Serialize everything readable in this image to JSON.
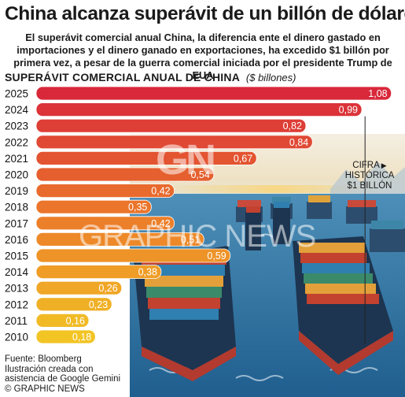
{
  "header": {
    "title": "China alcanza superávit de un billón de dólares",
    "subtitle": "El superávit comercial anual China, la diferencia ente el dinero gastado en importaciones y el dinero ganado en exportaciones, ha excedido $1 billón por primera vez, a pesar de la guerra comercial iniciada por el presidente Trump de EUA"
  },
  "chart_data": {
    "type": "bar",
    "orientation": "horizontal",
    "title": "SUPERÁVIT COMERCIAL ANUAL DE CHINA",
    "unit": "($ billones)",
    "categories": [
      "2025",
      "2024",
      "2023",
      "2022",
      "2021",
      "2020",
      "2019",
      "2018",
      "2017",
      "2016",
      "2015",
      "2014",
      "2013",
      "2012",
      "2011",
      "2010"
    ],
    "values": [
      1.08,
      0.99,
      0.82,
      0.84,
      0.67,
      0.54,
      0.42,
      0.35,
      0.42,
      0.51,
      0.59,
      0.38,
      0.26,
      0.23,
      0.16,
      0.18
    ],
    "value_labels": [
      "1,08",
      "0,99",
      "0,82",
      "0,84",
      "0,67",
      "0,54",
      "0,42",
      "0,35",
      "0,42",
      "0,51",
      "0,59",
      "0,38",
      "0,26",
      "0,23",
      "0,16",
      "0,18"
    ],
    "xlim": [
      0,
      1.1
    ],
    "reference_line": {
      "value": 1.0,
      "label_lines": [
        "CIFRA",
        "HISTÓRICA",
        "$1 BILLÓN"
      ]
    },
    "colors": {
      "top": "#d8283a",
      "mid": "#ec7a2a",
      "bottom": "#f2c424"
    },
    "grid": false,
    "legend": "none"
  },
  "footer": {
    "source": "Fuente: Bloomberg",
    "credit1": "Ilustración creada con",
    "credit2": "asistencia de Google Gemini",
    "copyright": "© GRAPHIC NEWS"
  },
  "watermark": {
    "logo": "GN",
    "text": "GRAPHIC NEWS"
  }
}
